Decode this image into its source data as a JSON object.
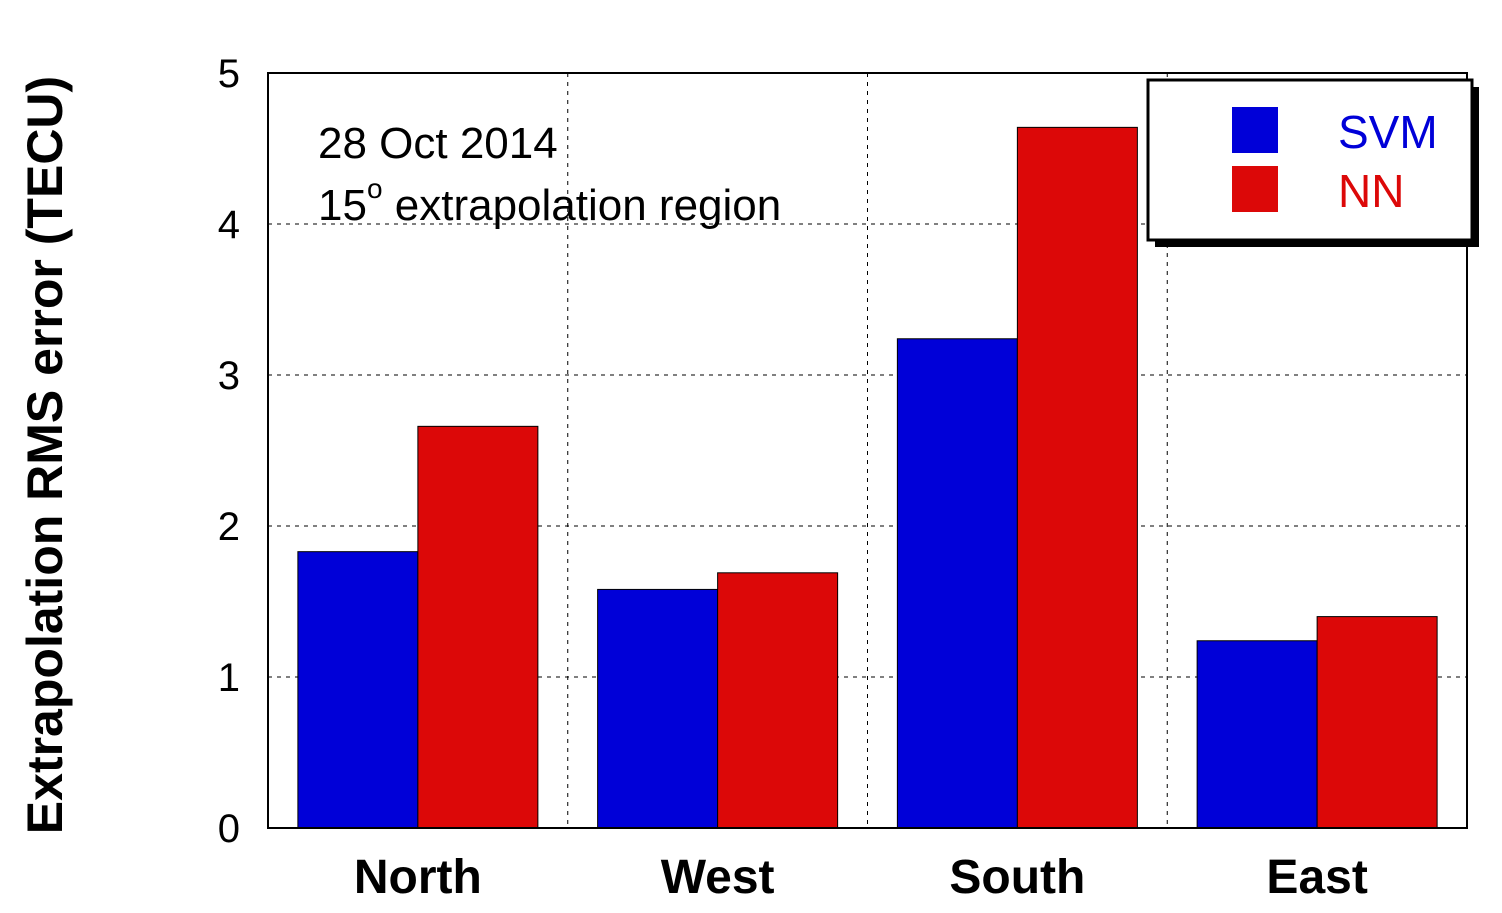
{
  "chart_data": {
    "type": "bar",
    "title": "",
    "annotation": [
      "28 Oct 2014",
      "15",
      "o",
      " extrapolation region"
    ],
    "xlabel": "",
    "ylabel": "Extrapolation RMS error (TECU)",
    "categories": [
      "North",
      "West",
      "South",
      "East"
    ],
    "series": [
      {
        "name": "SVM",
        "color": "#0000d8",
        "values": [
          1.83,
          1.58,
          3.24,
          1.24
        ]
      },
      {
        "name": "NN",
        "color": "#dc0808",
        "values": [
          2.66,
          1.69,
          4.64,
          1.4
        ]
      }
    ],
    "ylim": [
      0,
      5
    ],
    "yticks": [
      "0",
      "1",
      "2",
      "3",
      "4",
      "5"
    ],
    "grid": true,
    "legend_position": "top-right"
  }
}
